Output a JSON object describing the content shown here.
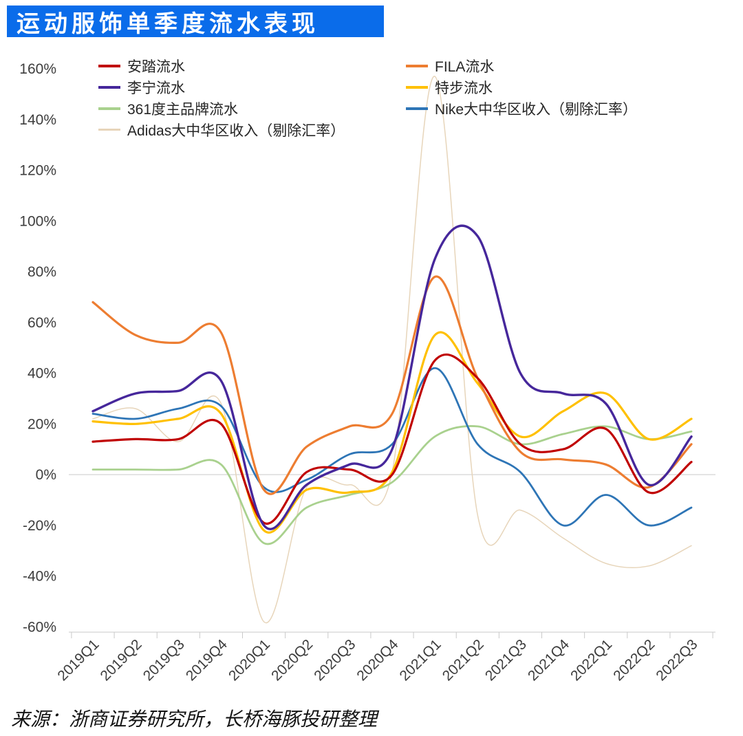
{
  "header": {
    "title": "运动服饰单季度流水表现",
    "banner_color": "#0a6cea",
    "title_color": "#ffffff"
  },
  "footer": {
    "source": "来源：浙商证券研究所，长桥海豚投研整理"
  },
  "chart_data": {
    "type": "line",
    "title": "运动服饰单季度流水表现",
    "xlabel": "",
    "ylabel": "",
    "grid": false,
    "legend_position": "top, two columns",
    "ylim": [
      -60,
      160
    ],
    "ytick_step": 20,
    "ytick_labels": [
      "160%",
      "140%",
      "120%",
      "100%",
      "80%",
      "60%",
      "40%",
      "20%",
      "0%",
      "-20%",
      "-40%",
      "-60%"
    ],
    "axis_color": "#c9c9c9",
    "label_color": "#3d3d3d",
    "categories": [
      "2019Q1",
      "2019Q2",
      "2019Q3",
      "2019Q4",
      "2020Q1",
      "2020Q2",
      "2020Q3",
      "2020Q4",
      "2021Q1",
      "2021Q2",
      "2021Q3",
      "2021Q4",
      "2022Q1",
      "2022Q2",
      "2022Q3"
    ],
    "series": [
      {
        "key": "anta-line",
        "name": "安踏流水",
        "color": "#c00000",
        "width": 3.2,
        "values": [
          13,
          14,
          14,
          20,
          -19,
          1,
          2,
          0,
          45,
          38,
          12,
          10,
          18,
          -7,
          5
        ]
      },
      {
        "key": "fila-line",
        "name": "FILA流水",
        "color": "#ed7d31",
        "width": 3.2,
        "values": [
          68,
          55,
          52,
          56,
          -6,
          11,
          19,
          24,
          78,
          38,
          9,
          6,
          4,
          -5,
          12
        ]
      },
      {
        "key": "lining-line",
        "name": "李宁流水",
        "color": "#46279b",
        "width": 3.4,
        "values": [
          25,
          32,
          33,
          37,
          -20,
          -4,
          4,
          10,
          85,
          94,
          40,
          32,
          28,
          -4,
          15
        ]
      },
      {
        "key": "xtep-line",
        "name": "特步流水",
        "color": "#ffc000",
        "width": 3.2,
        "values": [
          21,
          20,
          22,
          24,
          -22,
          -6,
          -7,
          1,
          55,
          36,
          15,
          25,
          32,
          14,
          22
        ]
      },
      {
        "key": "361du-line",
        "name": "361度主品牌流水",
        "color": "#a9d18e",
        "width": 2.8,
        "values": [
          2,
          2,
          2,
          4,
          -27,
          -13,
          -8,
          -3,
          15,
          19,
          12,
          16,
          19,
          14,
          17
        ]
      },
      {
        "key": "nike-line",
        "name": "Nike大中华区收入（剔除汇率）",
        "color": "#2e75b6",
        "width": 2.8,
        "values": [
          24,
          22,
          26,
          27,
          -5,
          -2,
          8,
          12,
          42,
          12,
          1,
          -20,
          -8,
          -20,
          -13
        ]
      },
      {
        "key": "adidas-line",
        "name": "Adidas大中华区收入（剔除汇率）",
        "color": "#e7d5ba",
        "width": 1.5,
        "values": [
          22,
          26,
          13,
          28,
          -58,
          -5,
          -4,
          1,
          157,
          -16,
          -14,
          -25,
          -35,
          -36,
          -28
        ]
      }
    ]
  }
}
